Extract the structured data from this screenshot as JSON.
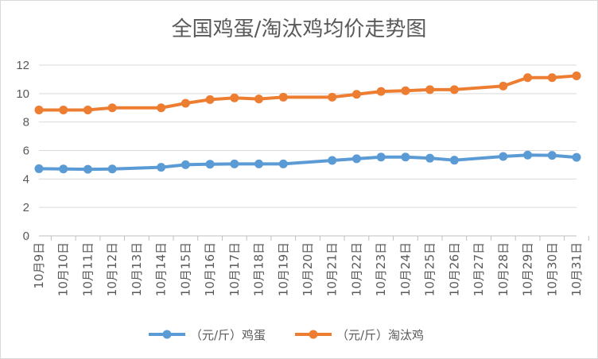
{
  "chart_data": {
    "type": "line",
    "title": "全国鸡蛋/淘汰鸡均价走势图",
    "xlabel": "",
    "ylabel": "",
    "ylim": [
      0,
      12
    ],
    "yticks": [
      0,
      2,
      4,
      6,
      8,
      10,
      12
    ],
    "grid": true,
    "legend_position": "bottom",
    "categories": [
      "10月9日",
      "10月10日",
      "10月11日",
      "10月12日",
      "10月13日",
      "10月14日",
      "10月15日",
      "10月16日",
      "10月17日",
      "10月18日",
      "10月19日",
      "10月20日",
      "10月21日",
      "10月22日",
      "10月23日",
      "10月24日",
      "10月25日",
      "10月26日",
      "10月27日",
      "10月28日",
      "10月29日",
      "10月30日",
      "10月31日"
    ],
    "series": [
      {
        "name": "（元/斤）鸡蛋",
        "color": "#5b9bd5",
        "values": [
          4.72,
          4.7,
          4.68,
          4.7,
          null,
          4.82,
          5.0,
          5.04,
          5.06,
          5.06,
          5.06,
          null,
          5.3,
          5.42,
          5.54,
          5.54,
          5.46,
          5.32,
          null,
          5.58,
          5.68,
          5.66,
          5.52
        ]
      },
      {
        "name": "（元/斤）淘汰鸡",
        "color": "#ed7d31",
        "values": [
          8.85,
          8.85,
          8.85,
          9.0,
          null,
          9.0,
          9.32,
          9.58,
          9.7,
          9.62,
          9.75,
          null,
          9.75,
          9.95,
          10.15,
          10.2,
          10.28,
          10.28,
          null,
          10.53,
          11.12,
          11.12,
          11.25
        ]
      }
    ]
  }
}
